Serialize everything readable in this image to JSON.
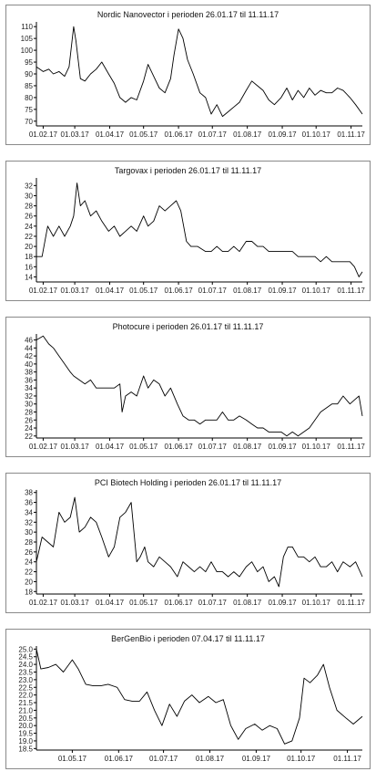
{
  "chart_data": [
    {
      "type": "line",
      "title": "Nordic Nanovector i perioden 26.01.17 til 11.11.17",
      "x_ticks": [
        "01.02.17",
        "01.03.17",
        "01.04.17",
        "01.05.17",
        "01.06.17",
        "01.07.17",
        "01.08.17",
        "01.09.17",
        "01.10.17",
        "01.11.17"
      ],
      "y_ticks": [
        70,
        75,
        80,
        85,
        90,
        95,
        100,
        105,
        110
      ],
      "xlim": [
        "26.01.17",
        "11.11.17"
      ],
      "ylim": [
        68,
        112
      ],
      "line_color": "#000000",
      "grid": false,
      "series": [
        {
          "x": [
            "26.01.17",
            "01.02.17",
            "06.02.17",
            "10.02.17",
            "15.02.17",
            "20.02.17",
            "24.02.17",
            "28.02.17",
            "02.03.17",
            "06.03.17",
            "10.03.17",
            "15.03.17",
            "20.03.17",
            "25.03.17",
            "31.03.17",
            "05.04.17",
            "10.04.17",
            "15.04.17",
            "20.04.17",
            "25.04.17",
            "01.05.17",
            "05.05.17",
            "10.05.17",
            "15.05.17",
            "20.05.17",
            "25.05.17",
            "28.05.17",
            "01.06.17",
            "05.06.17",
            "09.06.17",
            "14.06.17",
            "20.06.17",
            "25.06.17",
            "30.06.17",
            "05.07.17",
            "10.07.17",
            "15.07.17",
            "20.07.17",
            "25.07.17",
            "31.07.17",
            "05.08.17",
            "10.08.17",
            "15.08.17",
            "20.08.17",
            "25.08.17",
            "31.08.17",
            "05.09.17",
            "10.09.17",
            "15.09.17",
            "20.09.17",
            "25.09.17",
            "30.09.17",
            "05.10.17",
            "10.10.17",
            "15.10.17",
            "20.10.17",
            "25.10.17",
            "31.10.17",
            "05.11.17",
            "11.11.17"
          ],
          "y": [
            93,
            91,
            92,
            90,
            91,
            89,
            93,
            110,
            104,
            88,
            87,
            90,
            92,
            95,
            90,
            86,
            80,
            78,
            80,
            79,
            87,
            94,
            89,
            84,
            82,
            88,
            98,
            109,
            105,
            96,
            90,
            82,
            80,
            73,
            77,
            72,
            74,
            76,
            78,
            83,
            87,
            85,
            83,
            79,
            77,
            80,
            84,
            79,
            83,
            80,
            84,
            81,
            83,
            82,
            82,
            84,
            83,
            80,
            77,
            73
          ]
        }
      ]
    },
    {
      "type": "line",
      "title": "Targovax i perioden 26.01.17 til 11.11.17",
      "x_ticks": [
        "01.02.17",
        "01.03.17",
        "01.04.17",
        "01.05.17",
        "01.06.17",
        "01.07.17",
        "01.08.17",
        "01.09.17",
        "01.10.17",
        "01.11.17"
      ],
      "y_ticks": [
        14,
        16,
        18,
        20,
        22,
        24,
        26,
        28,
        30,
        32
      ],
      "xlim": [
        "26.01.17",
        "11.11.17"
      ],
      "ylim": [
        13,
        33.5
      ],
      "line_color": "#000000",
      "grid": false,
      "series": [
        {
          "x": [
            "26.01.17",
            "31.01.17",
            "05.02.17",
            "10.02.17",
            "15.02.17",
            "20.02.17",
            "25.02.17",
            "28.02.17",
            "03.03.17",
            "06.03.17",
            "10.03.17",
            "15.03.17",
            "20.03.17",
            "25.03.17",
            "31.03.17",
            "05.04.17",
            "10.04.17",
            "15.04.17",
            "20.04.17",
            "25.04.17",
            "01.05.17",
            "05.05.17",
            "10.05.17",
            "15.05.17",
            "20.05.17",
            "25.05.17",
            "30.05.17",
            "03.06.17",
            "08.06.17",
            "12.06.17",
            "18.06.17",
            "25.06.17",
            "30.06.17",
            "05.07.17",
            "10.07.17",
            "15.07.17",
            "20.07.17",
            "25.07.17",
            "31.07.17",
            "05.08.17",
            "10.08.17",
            "15.08.17",
            "20.08.17",
            "25.08.17",
            "31.08.17",
            "05.09.17",
            "10.09.17",
            "15.09.17",
            "20.09.17",
            "25.09.17",
            "30.09.17",
            "05.10.17",
            "10.10.17",
            "15.10.17",
            "20.10.17",
            "25.10.17",
            "31.10.17",
            "04.11.17",
            "08.11.17",
            "11.11.17"
          ],
          "y": [
            18,
            18,
            24,
            22,
            24,
            22,
            24,
            26,
            32.5,
            28,
            29,
            26,
            27,
            25,
            23,
            24,
            22,
            23,
            24,
            23,
            26,
            24,
            25,
            28,
            27,
            28,
            29,
            27,
            21,
            20,
            20,
            19,
            19,
            20,
            19,
            19,
            20,
            19,
            21,
            21,
            20,
            20,
            19,
            19,
            19,
            19,
            19,
            18,
            18,
            18,
            18,
            17,
            18,
            17,
            17,
            17,
            17,
            16,
            14,
            15
          ]
        }
      ]
    },
    {
      "type": "line",
      "title": "Photocure i perioden 26.01.17 til 11.11.17",
      "x_ticks": [
        "01.02.17",
        "01.03.17",
        "01.04.17",
        "01.05.17",
        "01.06.17",
        "01.07.17",
        "01.08.17",
        "01.09.17",
        "01.10.17",
        "01.11.17"
      ],
      "y_ticks": [
        22,
        24,
        26,
        28,
        30,
        32,
        34,
        36,
        38,
        40,
        42,
        44,
        46
      ],
      "xlim": [
        "26.01.17",
        "11.11.17"
      ],
      "ylim": [
        21.5,
        47.5
      ],
      "line_color": "#000000",
      "grid": false,
      "series": [
        {
          "x": [
            "26.01.17",
            "01.02.17",
            "06.02.17",
            "10.02.17",
            "15.02.17",
            "20.02.17",
            "25.02.17",
            "28.02.17",
            "05.03.17",
            "10.03.17",
            "15.03.17",
            "20.03.17",
            "25.03.17",
            "31.03.17",
            "05.04.17",
            "10.04.17",
            "12.04.17",
            "15.04.17",
            "20.04.17",
            "25.04.17",
            "01.05.17",
            "05.05.17",
            "10.05.17",
            "15.05.17",
            "20.05.17",
            "25.05.17",
            "31.05.17",
            "05.06.17",
            "10.06.17",
            "15.06.17",
            "20.06.17",
            "25.06.17",
            "30.06.17",
            "05.07.17",
            "10.07.17",
            "15.07.17",
            "20.07.17",
            "25.07.17",
            "31.07.17",
            "05.08.17",
            "10.08.17",
            "15.08.17",
            "20.08.17",
            "25.08.17",
            "31.08.17",
            "05.09.17",
            "10.09.17",
            "15.09.17",
            "20.09.17",
            "25.09.17",
            "30.09.17",
            "05.10.17",
            "10.10.17",
            "15.10.17",
            "20.10.17",
            "25.10.17",
            "31.10.17",
            "04.11.17",
            "08.11.17",
            "11.11.17"
          ],
          "y": [
            46,
            47,
            45,
            44,
            42,
            40,
            38,
            37,
            36,
            35,
            36,
            34,
            34,
            34,
            34,
            35,
            28,
            32,
            33,
            32,
            37,
            34,
            36,
            35,
            32,
            34,
            30,
            27,
            26,
            26,
            25,
            26,
            26,
            26,
            28,
            26,
            26,
            27,
            26,
            25,
            24,
            24,
            23,
            23,
            23,
            22,
            23,
            22,
            23,
            24,
            26,
            28,
            29,
            30,
            30,
            32,
            30,
            31,
            32,
            27
          ]
        }
      ]
    },
    {
      "type": "line",
      "title": "PCI Biotech Holding i perioden 26.01.17 til 11.11.17",
      "x_ticks": [
        "01.02.17",
        "01.03.17",
        "01.04.17",
        "01.05.17",
        "01.06.17",
        "01.07.17",
        "01.08.17",
        "01.09.17",
        "01.10.17",
        "01.11.17"
      ],
      "y_ticks": [
        18,
        20,
        22,
        24,
        26,
        28,
        30,
        32,
        34,
        36,
        38
      ],
      "xlim": [
        "26.01.17",
        "11.11.17"
      ],
      "ylim": [
        17.5,
        38.5
      ],
      "line_color": "#000000",
      "grid": false,
      "series": [
        {
          "x": [
            "26.01.17",
            "31.01.17",
            "05.02.17",
            "10.02.17",
            "15.02.17",
            "20.02.17",
            "25.02.17",
            "01.03.17",
            "05.03.17",
            "10.03.17",
            "15.03.17",
            "20.03.17",
            "25.03.17",
            "31.03.17",
            "05.04.17",
            "10.04.17",
            "15.04.17",
            "20.04.17",
            "25.04.17",
            "28.04.17",
            "02.05.17",
            "05.05.17",
            "10.05.17",
            "15.05.17",
            "20.05.17",
            "25.05.17",
            "31.05.17",
            "05.06.17",
            "10.06.17",
            "15.06.17",
            "20.06.17",
            "25.06.17",
            "30.06.17",
            "05.07.17",
            "10.07.17",
            "15.07.17",
            "20.07.17",
            "25.07.17",
            "31.07.17",
            "05.08.17",
            "10.08.17",
            "15.08.17",
            "20.08.17",
            "25.08.17",
            "29.08.17",
            "02.09.17",
            "06.09.17",
            "10.09.17",
            "15.09.17",
            "20.09.17",
            "25.09.17",
            "30.09.17",
            "05.10.17",
            "10.10.17",
            "15.10.17",
            "20.10.17",
            "25.10.17",
            "31.10.17",
            "05.11.17",
            "11.11.17"
          ],
          "y": [
            24,
            29,
            28,
            27,
            34,
            32,
            33,
            37,
            30,
            31,
            33,
            32,
            29,
            25,
            27,
            33,
            34,
            36,
            24,
            25,
            27,
            24,
            23,
            25,
            24,
            23,
            21,
            24,
            23,
            22,
            23,
            22,
            24,
            22,
            22,
            21,
            22,
            21,
            23,
            24,
            22,
            23,
            20,
            21,
            19,
            25,
            27,
            27,
            25,
            25,
            24,
            25,
            23,
            23,
            24,
            22,
            24,
            23,
            24,
            21
          ]
        }
      ]
    },
    {
      "type": "line",
      "title": "BerGenBio i perioden 07.04.17 til 11.11.17",
      "x_ticks": [
        "01.05.17",
        "01.06.17",
        "01.07.17",
        "01.08.17",
        "01.09.17",
        "01.10.17",
        "01.11.17"
      ],
      "y_ticks": [
        18.5,
        19.0,
        19.5,
        20.0,
        20.5,
        21.0,
        21.5,
        22.0,
        22.5,
        23.0,
        23.5,
        24.0,
        24.5,
        25.0
      ],
      "xlim": [
        "07.04.17",
        "11.11.17"
      ],
      "ylim": [
        18.4,
        25.2
      ],
      "line_color": "#000000",
      "grid": false,
      "series": [
        {
          "x": [
            "07.04.17",
            "10.04.17",
            "15.04.17",
            "20.04.17",
            "25.04.17",
            "01.05.17",
            "05.05.17",
            "10.05.17",
            "15.05.17",
            "20.05.17",
            "25.05.17",
            "31.05.17",
            "05.06.17",
            "10.06.17",
            "15.06.17",
            "20.06.17",
            "25.06.17",
            "30.06.17",
            "05.07.17",
            "10.07.17",
            "15.07.17",
            "20.07.17",
            "25.07.17",
            "31.07.17",
            "05.08.17",
            "10.08.17",
            "15.08.17",
            "20.08.17",
            "25.08.17",
            "31.08.17",
            "05.09.17",
            "10.09.17",
            "15.09.17",
            "20.09.17",
            "25.09.17",
            "30.09.17",
            "03.10.17",
            "07.10.17",
            "12.10.17",
            "16.10.17",
            "20.10.17",
            "25.10.17",
            "31.10.17",
            "05.11.17",
            "11.11.17"
          ],
          "y": [
            25.0,
            23.7,
            23.8,
            24.0,
            23.5,
            24.3,
            23.7,
            22.7,
            22.6,
            22.6,
            22.7,
            22.5,
            21.7,
            21.6,
            21.6,
            22.2,
            21.0,
            20.0,
            21.4,
            20.6,
            21.6,
            22.0,
            21.5,
            21.9,
            21.5,
            21.7,
            20.0,
            19.1,
            19.8,
            20.1,
            19.7,
            20.0,
            19.8,
            18.8,
            19.0,
            20.5,
            23.1,
            22.8,
            23.3,
            24.0,
            22.5,
            21.0,
            20.5,
            20.1,
            20.6
          ]
        }
      ]
    }
  ]
}
